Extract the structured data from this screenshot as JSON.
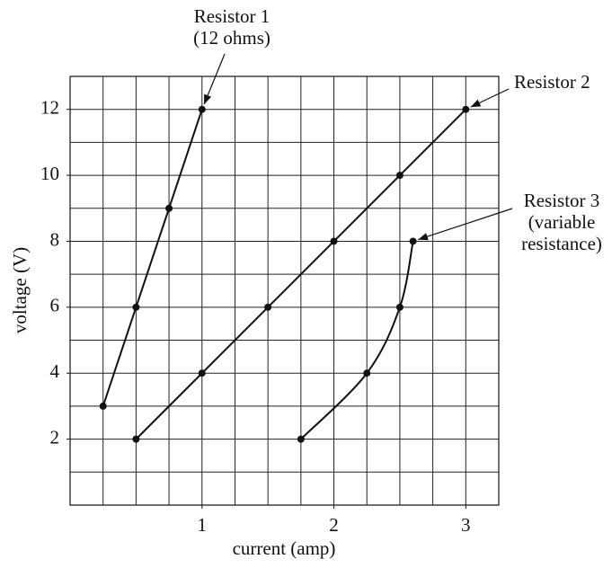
{
  "chart_data": {
    "type": "line",
    "xlabel": "current (amp)",
    "ylabel": "voltage (V)",
    "xlim": [
      0,
      3.25
    ],
    "ylim": [
      0,
      13
    ],
    "xticks": [
      1,
      2,
      3
    ],
    "yticks": [
      2,
      4,
      6,
      8,
      10,
      12
    ],
    "xgrid": [
      0.25,
      0.5,
      0.75,
      1,
      1.25,
      1.5,
      1.75,
      2,
      2.25,
      2.5,
      2.75,
      3
    ],
    "ygrid": [
      1,
      2,
      3,
      4,
      5,
      6,
      7,
      8,
      9,
      10,
      11,
      12
    ],
    "grid": true,
    "color": "#111",
    "series": [
      {
        "name": "Resistor 1",
        "note": [
          "(12 ohms)"
        ],
        "color": "#111",
        "smooth": false,
        "x": [
          0.25,
          0.5,
          0.75,
          1
        ],
        "values": [
          3,
          6,
          9,
          12
        ]
      },
      {
        "name": "Resistor 2",
        "note": [],
        "color": "#111",
        "smooth": false,
        "x": [
          0.5,
          1,
          1.5,
          2,
          2.5,
          3
        ],
        "values": [
          2,
          4,
          6,
          8,
          10,
          12
        ]
      },
      {
        "name": "Resistor 3",
        "note": [
          "(variable",
          "resistance)"
        ],
        "color": "#111",
        "smooth": true,
        "x": [
          1.75,
          2.25,
          2.5,
          2.6
        ],
        "values": [
          2,
          4,
          6,
          8
        ]
      }
    ]
  }
}
